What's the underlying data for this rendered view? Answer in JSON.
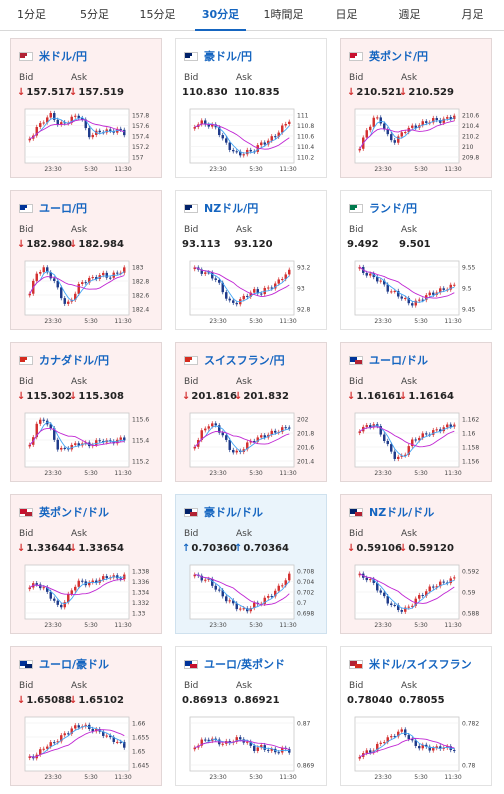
{
  "tabs": [
    "1分足",
    "5分足",
    "15分足",
    "30分足",
    "1時間足",
    "日足",
    "週足",
    "月足"
  ],
  "active_tab": "30分足",
  "colors": {
    "up": "#d32f2f",
    "down": "#1e3a8a",
    "ma_short": "#42a5f5",
    "ma_long": "#c026d3"
  },
  "labels": {
    "bid": "Bid",
    "ask": "Ask"
  },
  "x_ticks": [
    "23:30",
    "5:30",
    "11:30"
  ],
  "pairs": [
    {
      "name": "米ドル/円",
      "flag": "us-jp",
      "bg": "down",
      "bid_dir": "down",
      "ask_dir": "down",
      "bid": "157.517",
      "ask": "157.519",
      "y_ticks": [
        "157.8",
        "157.6",
        "157.4",
        "157.2",
        "157"
      ],
      "path": [
        0.55,
        0.35,
        0.2,
        0.1,
        0.3,
        0.25,
        0.15,
        0.12,
        0.5,
        0.45,
        0.4,
        0.42,
        0.38,
        0.45
      ]
    },
    {
      "name": "豪ドル/円",
      "flag": "au-jp",
      "bg": "plain",
      "bid_dir": "none",
      "ask_dir": "none",
      "bid": "110.830",
      "ask": "110.835",
      "y_ticks": [
        "111",
        "110.8",
        "110.6",
        "110.4",
        "110.2"
      ],
      "path": [
        0.3,
        0.25,
        0.3,
        0.35,
        0.6,
        0.75,
        0.85,
        0.8,
        0.78,
        0.65,
        0.6,
        0.5,
        0.35,
        0.2
      ]
    },
    {
      "name": "英ポンド/円",
      "flag": "uk-jp",
      "bg": "down",
      "bid_dir": "down",
      "ask_dir": "down",
      "bid": "210.521",
      "ask": "210.529",
      "y_ticks": [
        "210.6",
        "210.4",
        "210.2",
        "210",
        "209.8"
      ],
      "path": [
        0.7,
        0.4,
        0.15,
        0.25,
        0.55,
        0.6,
        0.4,
        0.35,
        0.3,
        0.25,
        0.2,
        0.22,
        0.18,
        0.12
      ]
    },
    {
      "name": "ユーロ/円",
      "flag": "eu-jp",
      "bg": "down",
      "bid_dir": "down",
      "ask_dir": "down",
      "bid": "182.980",
      "ask": "182.984",
      "y_ticks": [
        "183",
        "182.8",
        "182.6",
        "182.4"
      ],
      "path": [
        0.6,
        0.2,
        0.15,
        0.3,
        0.55,
        0.85,
        0.65,
        0.4,
        0.35,
        0.3,
        0.25,
        0.3,
        0.22,
        0.15
      ]
    },
    {
      "name": "NZドル/円",
      "flag": "nz-jp",
      "bg": "plain",
      "bid_dir": "none",
      "ask_dir": "none",
      "bid": "93.113",
      "ask": "93.120",
      "y_ticks": [
        "93.2",
        "93",
        "92.8"
      ],
      "path": [
        0.15,
        0.2,
        0.25,
        0.35,
        0.6,
        0.8,
        0.75,
        0.65,
        0.55,
        0.6,
        0.5,
        0.45,
        0.3,
        0.2
      ]
    },
    {
      "name": "ランド/円",
      "flag": "za-jp",
      "bg": "plain",
      "bid_dir": "none",
      "ask_dir": "none",
      "bid": "9.492",
      "ask": "9.501",
      "y_ticks": [
        "9.55",
        "9.5",
        "9.45"
      ],
      "path": [
        0.15,
        0.25,
        0.3,
        0.4,
        0.55,
        0.6,
        0.7,
        0.8,
        0.75,
        0.65,
        0.6,
        0.55,
        0.5,
        0.45
      ]
    },
    {
      "name": "カナダドル/円",
      "flag": "ca-jp",
      "bg": "down",
      "bid_dir": "down",
      "ask_dir": "down",
      "bid": "115.302",
      "ask": "115.308",
      "y_ticks": [
        "115.6",
        "115.4",
        "115.2"
      ],
      "path": [
        0.6,
        0.2,
        0.1,
        0.35,
        0.7,
        0.65,
        0.6,
        0.55,
        0.6,
        0.55,
        0.5,
        0.55,
        0.5,
        0.48
      ]
    },
    {
      "name": "スイスフラン/円",
      "flag": "ch-jp",
      "bg": "down",
      "bid_dir": "down",
      "ask_dir": "down",
      "bid": "201.816",
      "ask": "201.832",
      "y_ticks": [
        "202",
        "201.8",
        "201.6",
        "201.4"
      ],
      "path": [
        0.6,
        0.35,
        0.2,
        0.25,
        0.45,
        0.7,
        0.75,
        0.6,
        0.5,
        0.45,
        0.4,
        0.35,
        0.3,
        0.25
      ]
    },
    {
      "name": "ユーロ/ドル",
      "flag": "eu-us",
      "bg": "down",
      "bid_dir": "down",
      "ask_dir": "down",
      "bid": "1.16161",
      "ask": "1.16164",
      "y_ticks": [
        "1.162",
        "1.16",
        "1.158",
        "1.156"
      ],
      "path": [
        0.3,
        0.25,
        0.2,
        0.4,
        0.65,
        0.85,
        0.8,
        0.55,
        0.45,
        0.4,
        0.35,
        0.3,
        0.25,
        0.2
      ]
    },
    {
      "name": "英ポンド/ドル",
      "flag": "uk-us",
      "bg": "down",
      "bid_dir": "down",
      "ask_dir": "down",
      "bid": "1.33644",
      "ask": "1.33654",
      "y_ticks": [
        "1.338",
        "1.336",
        "1.334",
        "1.332",
        "1.33"
      ],
      "path": [
        0.4,
        0.35,
        0.45,
        0.6,
        0.8,
        0.65,
        0.4,
        0.3,
        0.35,
        0.3,
        0.25,
        0.2,
        0.25,
        0.2
      ]
    },
    {
      "name": "豪ドル/ドル",
      "flag": "au-us",
      "bg": "up",
      "bid_dir": "up",
      "ask_dir": "up",
      "bid": "0.70360",
      "ask": "0.70364",
      "y_ticks": [
        "0.708",
        "0.704",
        "0.702",
        "0.7",
        "0.698"
      ],
      "path": [
        0.2,
        0.25,
        0.3,
        0.45,
        0.6,
        0.7,
        0.8,
        0.85,
        0.75,
        0.7,
        0.6,
        0.5,
        0.35,
        0.2
      ]
    },
    {
      "name": "NZドル/ドル",
      "flag": "nz-us",
      "bg": "down",
      "bid_dir": "down",
      "ask_dir": "down",
      "bid": "0.59106",
      "ask": "0.59120",
      "y_ticks": [
        "0.592",
        "0.59",
        "0.588"
      ],
      "path": [
        0.2,
        0.25,
        0.35,
        0.55,
        0.7,
        0.8,
        0.85,
        0.75,
        0.6,
        0.5,
        0.4,
        0.35,
        0.3,
        0.25
      ]
    },
    {
      "name": "ユーロ/豪ドル",
      "flag": "eu-au",
      "bg": "down",
      "bid_dir": "down",
      "ask_dir": "down",
      "bid": "1.65088",
      "ask": "1.65102",
      "y_ticks": [
        "1.66",
        "1.655",
        "1.65",
        "1.645"
      ],
      "path": [
        0.75,
        0.7,
        0.55,
        0.5,
        0.4,
        0.3,
        0.2,
        0.15,
        0.2,
        0.25,
        0.3,
        0.4,
        0.45,
        0.55
      ]
    },
    {
      "name": "ユーロ/英ポンド",
      "flag": "eu-uk",
      "bg": "plain",
      "bid_dir": "none",
      "ask_dir": "none",
      "bid": "0.86913",
      "ask": "0.86921",
      "y_ticks": [
        "0.87",
        "0.869"
      ],
      "path": [
        0.55,
        0.45,
        0.4,
        0.45,
        0.5,
        0.45,
        0.4,
        0.45,
        0.6,
        0.55,
        0.6,
        0.65,
        0.6,
        0.62
      ]
    },
    {
      "name": "米ドル/スイスフラン",
      "flag": "us-ch",
      "bg": "plain",
      "bid_dir": "none",
      "ask_dir": "none",
      "bid": "0.78040",
      "ask": "0.78055",
      "y_ticks": [
        "0.782",
        "0.78"
      ],
      "path": [
        0.7,
        0.65,
        0.6,
        0.45,
        0.4,
        0.3,
        0.25,
        0.45,
        0.55,
        0.55,
        0.6,
        0.55,
        0.58,
        0.6
      ]
    }
  ]
}
